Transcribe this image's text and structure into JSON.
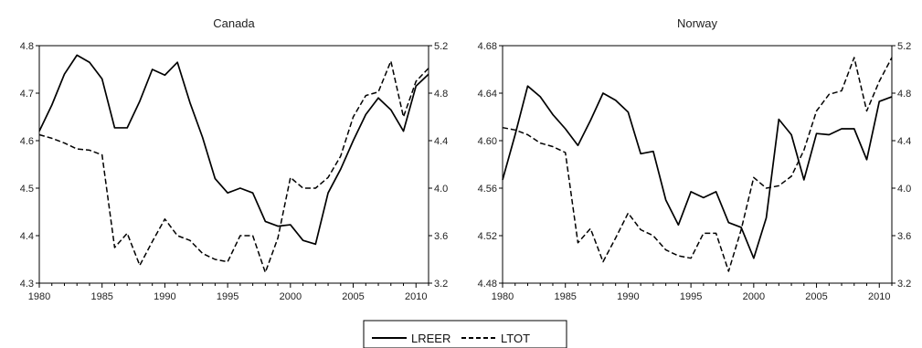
{
  "chart_data": [
    {
      "type": "line",
      "title": "Canada",
      "xlim": [
        1980,
        2011
      ],
      "xticks": [
        1980,
        1985,
        1990,
        1995,
        2000,
        2005,
        2010
      ],
      "y_left": {
        "lim": [
          4.3,
          4.8
        ],
        "ticks": [
          "4.3",
          "4.4",
          "4.5",
          "4.6",
          "4.7",
          "4.8"
        ]
      },
      "y_right": {
        "lim": [
          3.2,
          5.2
        ],
        "ticks": [
          "3.2",
          "3.6",
          "4.0",
          "4.4",
          "4.8",
          "5.2"
        ]
      },
      "x": [
        1980,
        1981,
        1982,
        1983,
        1984,
        1985,
        1986,
        1987,
        1988,
        1989,
        1990,
        1991,
        1992,
        1993,
        1994,
        1995,
        1996,
        1997,
        1998,
        1999,
        2000,
        2001,
        2002,
        2003,
        2004,
        2005,
        2006,
        2007,
        2008,
        2009,
        2010,
        2011
      ],
      "series": [
        {
          "name": "LREER",
          "axis": "left",
          "style": "solid",
          "values": [
            4.62,
            4.675,
            4.74,
            4.78,
            4.765,
            4.73,
            4.627,
            4.627,
            4.683,
            4.75,
            4.738,
            4.765,
            4.68,
            4.607,
            4.52,
            4.49,
            4.5,
            4.49,
            4.43,
            4.42,
            4.423,
            4.39,
            4.382,
            4.49,
            4.54,
            4.6,
            4.655,
            4.69,
            4.665,
            4.62,
            4.715,
            4.74
          ]
        },
        {
          "name": "LTOT",
          "axis": "right",
          "style": "dashed",
          "values": [
            4.45,
            4.42,
            4.38,
            4.33,
            4.32,
            4.28,
            3.5,
            3.62,
            3.35,
            3.55,
            3.74,
            3.6,
            3.56,
            3.45,
            3.4,
            3.38,
            3.6,
            3.6,
            3.29,
            3.58,
            4.09,
            4.0,
            4.0,
            4.09,
            4.27,
            4.6,
            4.78,
            4.81,
            5.07,
            4.6,
            4.9,
            5.01
          ]
        }
      ]
    },
    {
      "type": "line",
      "title": "Norway",
      "xlim": [
        1980,
        2011
      ],
      "xticks": [
        1980,
        1985,
        1990,
        1995,
        2000,
        2005,
        2010
      ],
      "y_left": {
        "lim": [
          4.48,
          4.68
        ],
        "ticks": [
          "4.48",
          "4.52",
          "4.56",
          "4.60",
          "4.64",
          "4.68"
        ]
      },
      "y_right": {
        "lim": [
          3.2,
          5.2
        ],
        "ticks": [
          "3.2",
          "3.6",
          "4.0",
          "4.4",
          "4.8",
          "5.2"
        ]
      },
      "x": [
        1980,
        1981,
        1982,
        1983,
        1984,
        1985,
        1986,
        1987,
        1988,
        1989,
        1990,
        1991,
        1992,
        1993,
        1994,
        1995,
        1996,
        1997,
        1998,
        1999,
        2000,
        2001,
        2002,
        2003,
        2004,
        2005,
        2006,
        2007,
        2008,
        2009,
        2010,
        2011
      ],
      "series": [
        {
          "name": "LREER",
          "axis": "left",
          "style": "solid",
          "values": [
            4.567,
            4.605,
            4.646,
            4.637,
            4.622,
            4.61,
            4.596,
            4.617,
            4.64,
            4.634,
            4.624,
            4.589,
            4.591,
            4.55,
            4.529,
            4.557,
            4.552,
            4.557,
            4.531,
            4.527,
            4.501,
            4.535,
            4.618,
            4.605,
            4.567,
            4.606,
            4.605,
            4.61,
            4.61,
            4.584,
            4.633,
            4.637
          ]
        },
        {
          "name": "LTOT",
          "axis": "right",
          "style": "dashed",
          "values": [
            4.51,
            4.49,
            4.45,
            4.38,
            4.35,
            4.3,
            3.54,
            3.66,
            3.38,
            3.58,
            3.79,
            3.65,
            3.6,
            3.48,
            3.43,
            3.41,
            3.62,
            3.62,
            3.3,
            3.65,
            4.09,
            4.0,
            4.02,
            4.1,
            4.32,
            4.65,
            4.79,
            4.82,
            5.1,
            4.65,
            4.9,
            5.1
          ]
        }
      ]
    }
  ],
  "legend": {
    "items": [
      {
        "label": "LREER",
        "style": "solid"
      },
      {
        "label": "LTOT",
        "style": "dashed"
      }
    ]
  }
}
